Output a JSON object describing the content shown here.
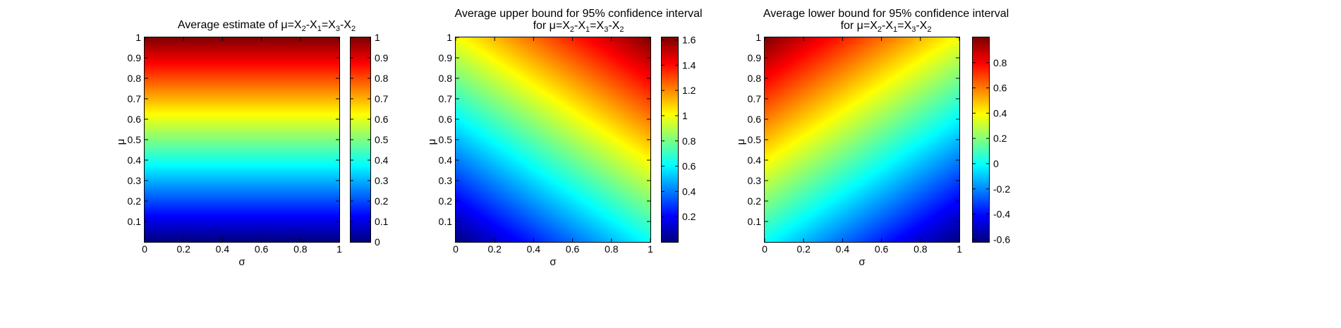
{
  "chart_data": [
    {
      "type": "heatmap",
      "title": {
        "parts": [
          {
            "t": "Average estimate of μ=X",
            "sub": "2"
          },
          {
            "t": "-X",
            "sub": "1"
          },
          {
            "t": "=X",
            "sub": "3"
          },
          {
            "t": "-X",
            "sub": "2"
          }
        ]
      },
      "title_line2": null,
      "xlabel": "σ",
      "ylabel": "μ",
      "xlim": [
        0,
        1
      ],
      "ylim": [
        0,
        1
      ],
      "xticks": [
        "0",
        "0.2",
        "0.4",
        "0.6",
        "0.8",
        "1"
      ],
      "yticks": [
        "0.1",
        "0.2",
        "0.3",
        "0.4",
        "0.5",
        "0.6",
        "0.7",
        "0.8",
        "0.9",
        "1"
      ],
      "z_formula": "mu",
      "clim": [
        0,
        1
      ],
      "colorbar_ticks": [
        "0",
        "0.1",
        "0.2",
        "0.3",
        "0.4",
        "0.5",
        "0.6",
        "0.7",
        "0.8",
        "0.9",
        "1"
      ],
      "colormap": "jet"
    },
    {
      "type": "heatmap",
      "title": {
        "parts": [
          {
            "t": "Average upper bound for 95% confidence interval"
          }
        ]
      },
      "title_line2": {
        "parts": [
          {
            "t": "for μ=X",
            "sub": "2"
          },
          {
            "t": "-X",
            "sub": "1"
          },
          {
            "t": "=X",
            "sub": "3"
          },
          {
            "t": "-X",
            "sub": "2"
          }
        ]
      },
      "xlabel": "σ",
      "ylabel": "μ",
      "xlim": [
        0,
        1
      ],
      "ylim": [
        0,
        1
      ],
      "xticks": [
        "0",
        "0.2",
        "0.4",
        "0.6",
        "0.8",
        "1"
      ],
      "yticks": [
        "0.1",
        "0.2",
        "0.3",
        "0.4",
        "0.5",
        "0.6",
        "0.7",
        "0.8",
        "0.9",
        "1"
      ],
      "z_formula": "mu + 0.62*sigma",
      "clim": [
        0,
        1.62
      ],
      "colorbar_ticks": [
        "0.2",
        "0.4",
        "0.6",
        "0.8",
        "1",
        "1.2",
        "1.4",
        "1.6"
      ],
      "colormap": "jet"
    },
    {
      "type": "heatmap",
      "title": {
        "parts": [
          {
            "t": "Average lower bound for  95% confidence interval"
          }
        ]
      },
      "title_line2": {
        "parts": [
          {
            "t": "for μ=X",
            "sub": "2"
          },
          {
            "t": "-X",
            "sub": "1"
          },
          {
            "t": "=X",
            "sub": "3"
          },
          {
            "t": "-X",
            "sub": "2"
          }
        ]
      },
      "xlabel": "σ",
      "ylabel": "μ",
      "xlim": [
        0,
        1
      ],
      "ylim": [
        0,
        1
      ],
      "xticks": [
        "0",
        "0.2",
        "0.4",
        "0.6",
        "0.8",
        "1"
      ],
      "yticks": [
        "0.1",
        "0.2",
        "0.3",
        "0.4",
        "0.5",
        "0.6",
        "0.7",
        "0.8",
        "0.9",
        "1"
      ],
      "z_formula": "mu - 0.62*sigma",
      "clim": [
        -0.62,
        1
      ],
      "colorbar_ticks": [
        "-0.6",
        "-0.4",
        "-0.2",
        "0",
        "0.2",
        "0.4",
        "0.6",
        "0.8"
      ],
      "colormap": "jet"
    }
  ]
}
